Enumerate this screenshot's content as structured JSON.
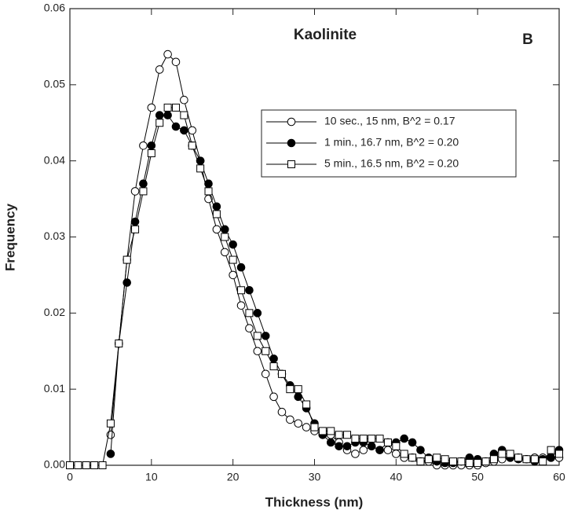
{
  "chart_data": {
    "type": "line",
    "title": "Kaolinite",
    "annotation": "B",
    "x_label": "Thickness  (nm)",
    "y_label": "Frequency",
    "x": [
      0,
      1,
      2,
      3,
      4,
      5,
      6,
      7,
      8,
      9,
      10,
      11,
      12,
      13,
      14,
      15,
      16,
      17,
      18,
      19,
      20,
      21,
      22,
      23,
      24,
      25,
      26,
      27,
      28,
      29,
      30,
      31,
      32,
      33,
      34,
      35,
      36,
      37,
      38,
      39,
      40,
      41,
      42,
      43,
      44,
      45,
      46,
      47,
      48,
      49,
      50,
      51,
      52,
      53,
      54,
      55,
      56,
      57,
      58,
      59,
      60
    ],
    "series": [
      {
        "name": "10 sec., 15 nm, B^2 = 0.17",
        "color": "#000000",
        "marker": "circle",
        "marker_fill": "#ffffff",
        "values": [
          null,
          null,
          null,
          null,
          null,
          0.004,
          0.016,
          0.027,
          0.036,
          0.042,
          0.047,
          0.052,
          0.054,
          0.053,
          0.048,
          0.044,
          0.04,
          0.035,
          0.031,
          0.028,
          0.025,
          0.021,
          0.018,
          0.015,
          0.012,
          0.009,
          0.007,
          0.006,
          0.0055,
          0.005,
          0.0045,
          0.004,
          0.004,
          0.003,
          0.002,
          0.0015,
          0.002,
          0.0025,
          0.002,
          0.002,
          0.0015,
          0.001,
          0.001,
          0.0005,
          0.0005,
          0,
          0,
          0,
          0,
          0,
          0,
          0.0003,
          0.0005,
          0.0008,
          0.001,
          0.001,
          0.0008,
          0.001,
          0.001,
          0.001,
          0.001
        ]
      },
      {
        "name": "1  min., 16.7 nm, B^2 = 0.20",
        "color": "#000000",
        "marker": "circle",
        "marker_fill": "#000000",
        "values": [
          null,
          null,
          null,
          null,
          null,
          0.0015,
          0.016,
          0.024,
          0.032,
          0.037,
          0.042,
          0.046,
          0.046,
          0.0445,
          0.044,
          0.042,
          0.04,
          0.037,
          0.034,
          0.031,
          0.029,
          0.026,
          0.023,
          0.02,
          0.017,
          0.014,
          0.012,
          0.0105,
          0.009,
          0.0075,
          0.0055,
          0.004,
          0.003,
          0.0025,
          0.0025,
          0.003,
          0.003,
          0.0025,
          0.002,
          0.003,
          0.003,
          0.0035,
          0.003,
          0.002,
          0.001,
          0.0005,
          0.0003,
          0.0003,
          0.0005,
          0.001,
          0.0008,
          0.0005,
          0.0015,
          0.002,
          0.001,
          0.0008,
          0.0008,
          0.0005,
          0.0008,
          0.001,
          0.002
        ]
      },
      {
        "name": "5 min., 16.5 nm, B^2 = 0.20",
        "color": "#000000",
        "marker": "square",
        "marker_fill": "#ffffff",
        "values": [
          0,
          0,
          0,
          0,
          0,
          0.0055,
          0.016,
          0.027,
          0.031,
          0.036,
          0.041,
          0.045,
          0.047,
          0.047,
          0.046,
          0.042,
          0.039,
          0.036,
          0.033,
          0.03,
          0.027,
          0.023,
          0.02,
          0.017,
          0.015,
          0.013,
          0.012,
          0.01,
          0.01,
          0.008,
          0.005,
          0.0045,
          0.0045,
          0.004,
          0.004,
          0.0035,
          0.0035,
          0.0035,
          0.0035,
          0.003,
          0.0025,
          0.0015,
          0.001,
          0.0005,
          0.0008,
          0.001,
          0.0008,
          0.0005,
          0.0005,
          0.0003,
          0.0003,
          0.0005,
          0.0008,
          0.0015,
          0.0015,
          0.001,
          0.0008,
          0.0008,
          0.0005,
          0.002,
          0.0015
        ]
      }
    ],
    "xlim": [
      0,
      60
    ],
    "xticks": [
      0,
      10,
      20,
      30,
      40,
      50,
      60
    ],
    "ylim": [
      0,
      0.06
    ],
    "yticks": [
      {
        "value": 0,
        "label": "0.00"
      },
      {
        "value": 0.01,
        "label": "0.01"
      },
      {
        "value": 0.02,
        "label": "0.02"
      },
      {
        "value": 0.03,
        "label": "0.03"
      },
      {
        "value": 0.04,
        "label": "0.04"
      },
      {
        "value": 0.05,
        "label": "0.05"
      },
      {
        "value": 0.06,
        "label": "0.06"
      }
    ],
    "grid": false,
    "legend": "upper right"
  }
}
